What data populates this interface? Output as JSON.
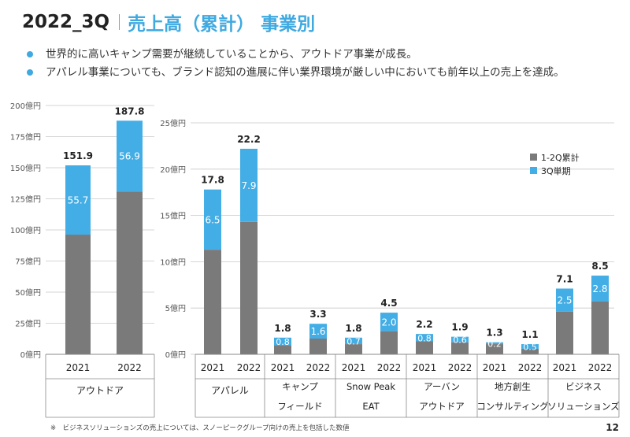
{
  "header": {
    "year": "2022_3Q",
    "subtitle": "売上高（累計） 事業別"
  },
  "bullets": [
    "世界的に高いキャンプ需要が継続していることから、アウトドア事業が成長。",
    "アパレル事業についても、ブランド認知の進展に伴い業界環境が厳しい中においても前年以上の売上を達成。"
  ],
  "colors": {
    "accent": "#3fa9e0",
    "h1_2q": "#7a7a7a",
    "q3": "#43aee5",
    "text": "#222222",
    "grid": "#c8c8c8"
  },
  "footnote": "※　ビジネスソリューションズの売上については、スノーピークグループ向けの売上を包括した数値",
  "page_number": "12",
  "chart_data": [
    {
      "type": "bar",
      "stacked": true,
      "ylim": [
        0,
        200
      ],
      "yticks": [
        0,
        25,
        50,
        75,
        100,
        125,
        150,
        175,
        200
      ],
      "ytick_labels": [
        "0億円",
        "25億円",
        "50億円",
        "75億円",
        "100億円",
        "125億円",
        "150億円",
        "175億円",
        "200億円"
      ],
      "groups": [
        {
          "name": [
            "アウトドア"
          ],
          "years": [
            "2021",
            "2022"
          ],
          "h1": [
            96.2,
            130.9
          ],
          "q3": [
            55.7,
            56.9
          ],
          "totals": [
            "151.9",
            "187.8"
          ],
          "q3_labels": [
            "55.7",
            "56.9"
          ]
        }
      ]
    },
    {
      "type": "bar",
      "stacked": true,
      "ylim": [
        0,
        25
      ],
      "yticks": [
        0,
        5,
        10,
        15,
        20,
        25
      ],
      "ytick_labels": [
        "0億円",
        "5億円",
        "10億円",
        "15億円",
        "20億円",
        "25億円"
      ],
      "legend": [
        "1-2Q累計",
        "3Q単期"
      ],
      "legend_position": "top-right",
      "groups": [
        {
          "name": [
            "アパレル"
          ],
          "years": [
            "2021",
            "2022"
          ],
          "h1": [
            11.3,
            14.3
          ],
          "q3": [
            6.5,
            7.9
          ],
          "totals": [
            "17.8",
            "22.2"
          ],
          "q3_labels": [
            "6.5",
            "7.9"
          ]
        },
        {
          "name": [
            "キャンプ",
            "フィールド"
          ],
          "years": [
            "2021",
            "2022"
          ],
          "h1": [
            1.0,
            1.7
          ],
          "q3": [
            0.8,
            1.6
          ],
          "totals": [
            "1.8",
            "3.3"
          ],
          "q3_labels": [
            "0.8",
            "1.6"
          ]
        },
        {
          "name": [
            "Snow Peak",
            "EAT"
          ],
          "years": [
            "2021",
            "2022"
          ],
          "h1": [
            1.1,
            2.5
          ],
          "q3": [
            0.7,
            2.0
          ],
          "totals": [
            "1.8",
            "4.5"
          ],
          "q3_labels": [
            "0.7",
            "2.0"
          ]
        },
        {
          "name": [
            "アーバン",
            "アウトドア"
          ],
          "years": [
            "2021",
            "2022"
          ],
          "h1": [
            1.4,
            1.3
          ],
          "q3": [
            0.8,
            0.6
          ],
          "totals": [
            "2.2",
            "1.9"
          ],
          "q3_labels": [
            "0.8",
            "0.6"
          ]
        },
        {
          "name": [
            "地方創生",
            "コンサルティング"
          ],
          "years": [
            "2021",
            "2022"
          ],
          "h1": [
            1.1,
            0.6
          ],
          "q3": [
            0.2,
            0.5
          ],
          "totals": [
            "1.3",
            "1.1"
          ],
          "q3_labels": [
            "0.2",
            "0.5"
          ]
        },
        {
          "name": [
            "ビジネス",
            "ソリューションズ"
          ],
          "years": [
            "2021",
            "2022"
          ],
          "h1": [
            4.6,
            5.7
          ],
          "q3": [
            2.5,
            2.8
          ],
          "totals": [
            "7.1",
            "8.5"
          ],
          "q3_labels": [
            "2.5",
            "2.8"
          ]
        }
      ]
    }
  ]
}
